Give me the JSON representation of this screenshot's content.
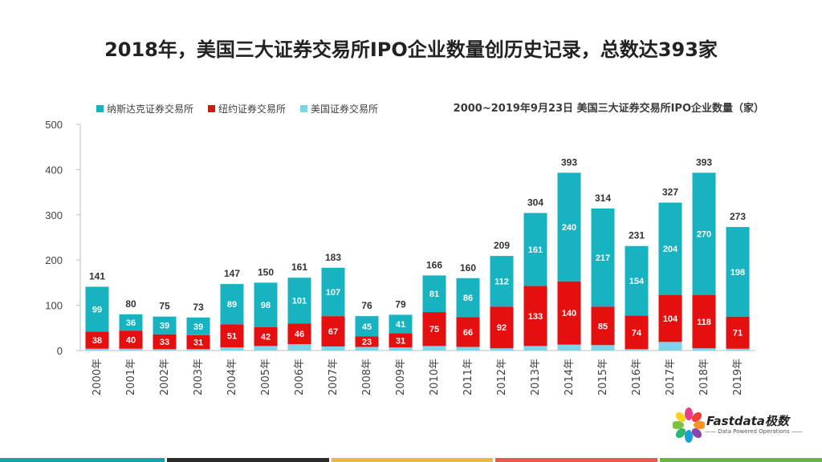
{
  "title": "2018年，美国三大证券交易所IPO企业数量创历史记录，总数达393家",
  "subtitle": "2000~2019年9月23日 美国三大证券交易所IPO企业数量（家）",
  "legend": [
    {
      "label": "纳斯达克证券交易所",
      "color": "#17b3c1"
    },
    {
      "label": "纽约证券交易所",
      "color": "#e60f0f"
    },
    {
      "label": "美国证券交易所",
      "color": "#7dd3ea"
    }
  ],
  "logo": {
    "name": "Fastdata极数",
    "tagline": "—— Data Powered Operations ——"
  },
  "footer_colors": [
    "#1aa0a8",
    "#2c2c2c",
    "#e8b84a",
    "#e85a4f",
    "#6db33f"
  ],
  "chart_data": {
    "type": "bar",
    "stacked": true,
    "categories": [
      "2000年",
      "2001年",
      "2002年",
      "2003年",
      "2004年",
      "2005年",
      "2006年",
      "2007年",
      "2008年",
      "2009年",
      "2010年",
      "2011年",
      "2012年",
      "2013年",
      "2014年",
      "2015年",
      "2016年",
      "2017年",
      "2018年",
      "2019年"
    ],
    "series": [
      {
        "name": "美国证券交易所",
        "color": "#7dd3ea",
        "values": [
          4,
          4,
          3,
          3,
          7,
          10,
          14,
          9,
          8,
          7,
          10,
          8,
          5,
          10,
          13,
          12,
          3,
          19,
          5,
          4
        ]
      },
      {
        "name": "纽约证券交易所",
        "color": "#e60f0f",
        "values": [
          38,
          40,
          33,
          31,
          51,
          42,
          46,
          67,
          23,
          31,
          75,
          66,
          92,
          133,
          140,
          85,
          74,
          104,
          118,
          71
        ]
      },
      {
        "name": "纳斯达克证券交易所",
        "color": "#17b3c1",
        "values": [
          99,
          36,
          39,
          39,
          89,
          98,
          101,
          107,
          45,
          41,
          81,
          86,
          112,
          161,
          240,
          217,
          154,
          204,
          270,
          198
        ]
      }
    ],
    "totals": [
      141,
      80,
      75,
      73,
      147,
      150,
      161,
      183,
      76,
      79,
      166,
      160,
      209,
      304,
      393,
      314,
      231,
      327,
      393,
      273
    ],
    "yticks": [
      0,
      100,
      200,
      300,
      400,
      500
    ],
    "ylim": [
      0,
      500
    ],
    "grid": false,
    "legend_position": "top-left"
  }
}
